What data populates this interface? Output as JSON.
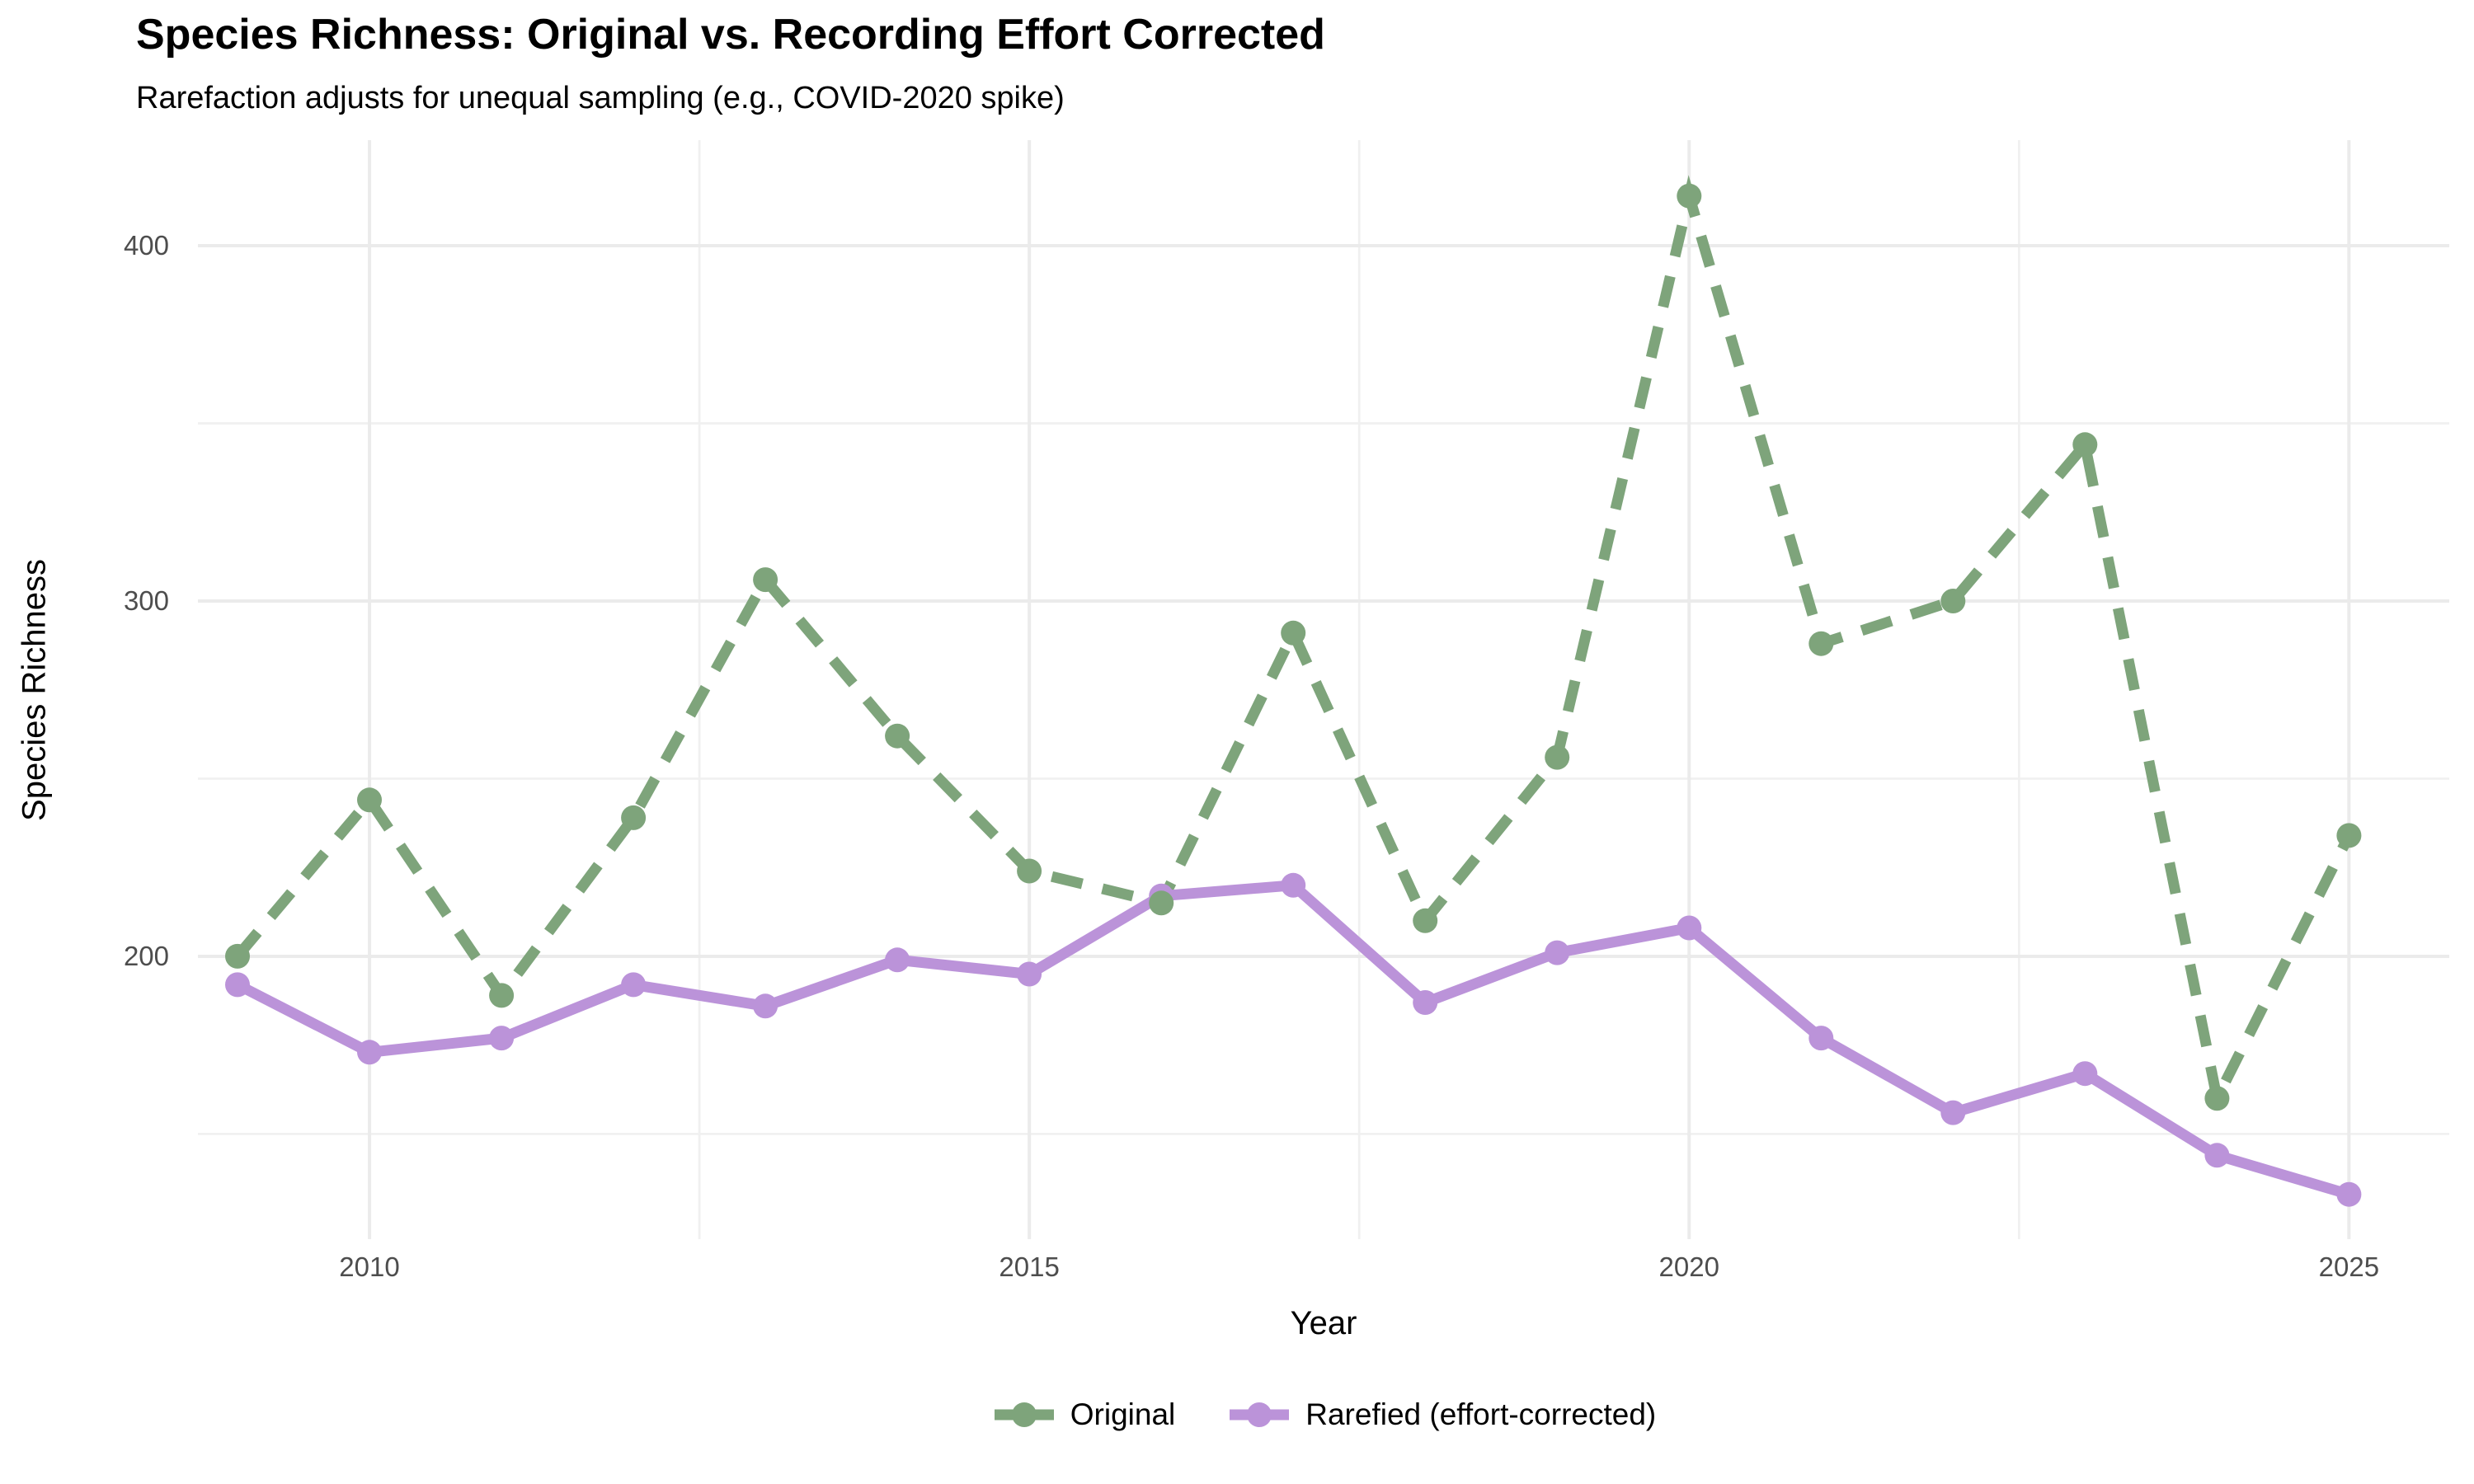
{
  "header": {
    "title": "Species Richness: Original vs. Recording Effort Corrected",
    "subtitle": "Rarefaction adjusts for unequal sampling (e.g., COVID-2020 spike)"
  },
  "chart_data": {
    "type": "line",
    "title": "Species Richness: Original vs. Recording Effort Corrected",
    "subtitle": "Rarefaction adjusts for unequal sampling (e.g., COVID-2020 spike)",
    "xlabel": "Year",
    "ylabel": "Species Richness",
    "x": [
      2009,
      2010,
      2011,
      2012,
      2013,
      2014,
      2015,
      2016,
      2017,
      2018,
      2019,
      2020,
      2021,
      2022,
      2023,
      2024,
      2025
    ],
    "series": [
      {
        "name": "Original",
        "color": "#7EA47B",
        "dashed": true,
        "values": [
          200,
          244,
          189,
          239,
          306,
          262,
          224,
          215,
          291,
          210,
          256,
          414,
          288,
          300,
          344,
          160,
          234
        ]
      },
      {
        "name": "Rarefied (effort-corrected)",
        "color": "#BB93D9",
        "dashed": false,
        "values": [
          192,
          173,
          177,
          192,
          186,
          199,
          195,
          217,
          220,
          187,
          201,
          208,
          177,
          156,
          167,
          144,
          133
        ]
      }
    ],
    "x_ticks": [
      2010,
      2015,
      2020,
      2025
    ],
    "x_minor": [
      2012.5,
      2017.5,
      2022.5
    ],
    "y_ticks": [
      200,
      300,
      400
    ],
    "y_minor": [
      150,
      250,
      350
    ],
    "xlim": [
      2008.7,
      2025.76
    ],
    "ylim": [
      120.4,
      429.7
    ],
    "grid": true,
    "legend_position": "bottom"
  },
  "colors": {
    "background": "#FFFFFF",
    "grid_major": "#EBEBEB",
    "grid_minor": "#F0F0F0",
    "tick_text": "#4D4D4D",
    "text": "#000000",
    "original": "#7EA47B",
    "rarefied": "#BB93D9"
  }
}
